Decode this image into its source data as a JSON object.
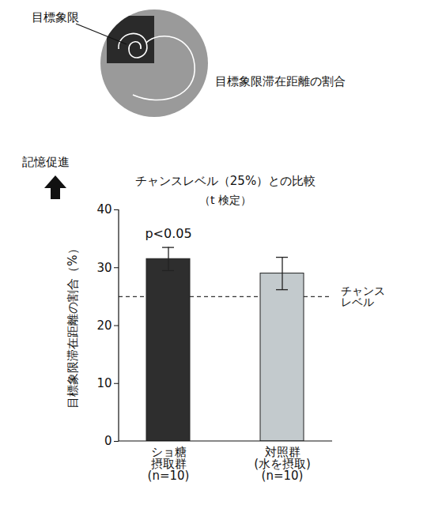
{
  "chart_data": {
    "type": "bar",
    "title": "チャンスレベル（25%）との比較",
    "subtitle": "（t 検定）",
    "y_label": "目標象限滞在距離の割合（%）",
    "categories": [
      "ショ糖\n摂取群\n(n=10)",
      "対照群\n(水を摂取)\n(n=10)"
    ],
    "values": [
      31.5,
      29.0
    ],
    "errors": [
      2.0,
      2.8
    ],
    "colors": [
      "#2e2e2e",
      "#c3cacd"
    ],
    "significance": [
      "p<0.05",
      null
    ],
    "reference_line": {
      "value": 25,
      "label": "チャンスレベル"
    },
    "arrow_label": "記憶促進",
    "inset": {
      "quadrant_label": "目標象限",
      "caption": "目標象限滞在距離の割合"
    },
    "ylim": [
      0,
      40
    ],
    "yticks": [
      0,
      10,
      20,
      30,
      40
    ],
    "grid": false
  }
}
